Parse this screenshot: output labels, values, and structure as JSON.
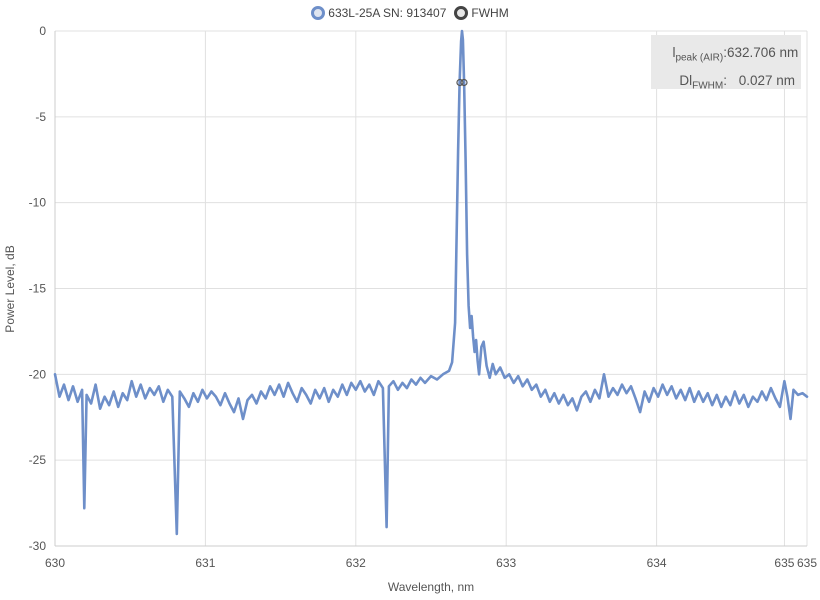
{
  "legend": {
    "series_label": "633L-25A SN: 913407",
    "fwhm_label": "FWHM"
  },
  "info": {
    "peak_label_main": "l",
    "peak_label_sub": "peak (AIR)",
    "peak_value": "632.706 nm",
    "fwhm_label_main": "Dl",
    "fwhm_label_sub": "FWHM",
    "fwhm_value": "0.027 nm"
  },
  "colors": {
    "series": "#6e8fc9",
    "fwhm_marker": "#555555",
    "grid": "#e0e0e0",
    "info_bg": "#e9e9e9"
  },
  "chart_data": {
    "type": "line",
    "title": "",
    "xlabel": "Wavelength, nm",
    "ylabel": "Power Level, dB",
    "xlim": [
      630,
      635
    ],
    "ylim": [
      -30,
      0
    ],
    "grid": true,
    "legend_position": "top-center",
    "x_ticks": [
      630,
      631,
      632,
      633,
      634,
      635
    ],
    "x_tick_labels": [
      "630",
      "631",
      "632",
      "633",
      "634",
      "635"
    ],
    "x_tick_extra": {
      "value": 634.85,
      "label": "635"
    },
    "y_ticks": [
      0,
      -5,
      -10,
      -15,
      -20,
      -25,
      -30
    ],
    "y_tick_labels": [
      "0",
      "-5",
      "-10",
      "-15",
      "-20",
      "-25",
      "-30"
    ],
    "series": [
      {
        "name": "633L-25A SN: 913407",
        "points": [
          [
            630.0,
            -20.0
          ],
          [
            630.03,
            -21.3
          ],
          [
            630.06,
            -20.6
          ],
          [
            630.09,
            -21.5
          ],
          [
            630.12,
            -20.7
          ],
          [
            630.15,
            -21.6
          ],
          [
            630.18,
            -20.9
          ],
          [
            630.195,
            -27.8
          ],
          [
            630.21,
            -21.2
          ],
          [
            630.24,
            -21.7
          ],
          [
            630.27,
            -20.6
          ],
          [
            630.3,
            -22.0
          ],
          [
            630.33,
            -21.3
          ],
          [
            630.36,
            -21.8
          ],
          [
            630.39,
            -21.0
          ],
          [
            630.42,
            -21.9
          ],
          [
            630.45,
            -21.1
          ],
          [
            630.48,
            -21.5
          ],
          [
            630.51,
            -20.4
          ],
          [
            630.54,
            -21.3
          ],
          [
            630.57,
            -20.6
          ],
          [
            630.6,
            -21.4
          ],
          [
            630.63,
            -20.8
          ],
          [
            630.66,
            -21.2
          ],
          [
            630.69,
            -20.7
          ],
          [
            630.72,
            -21.6
          ],
          [
            630.75,
            -20.9
          ],
          [
            630.78,
            -21.3
          ],
          [
            630.81,
            -29.3
          ],
          [
            630.83,
            -21.0
          ],
          [
            630.86,
            -21.4
          ],
          [
            630.89,
            -21.9
          ],
          [
            630.92,
            -21.1
          ],
          [
            630.95,
            -21.6
          ],
          [
            630.98,
            -20.9
          ],
          [
            631.01,
            -21.4
          ],
          [
            631.04,
            -21.0
          ],
          [
            631.07,
            -21.3
          ],
          [
            631.1,
            -21.8
          ],
          [
            631.13,
            -21.1
          ],
          [
            631.16,
            -21.7
          ],
          [
            631.19,
            -22.2
          ],
          [
            631.22,
            -21.4
          ],
          [
            631.25,
            -22.6
          ],
          [
            631.28,
            -21.5
          ],
          [
            631.31,
            -21.2
          ],
          [
            631.34,
            -21.7
          ],
          [
            631.37,
            -21.0
          ],
          [
            631.4,
            -21.4
          ],
          [
            631.43,
            -20.7
          ],
          [
            631.46,
            -21.2
          ],
          [
            631.49,
            -20.6
          ],
          [
            631.52,
            -21.3
          ],
          [
            631.55,
            -20.5
          ],
          [
            631.58,
            -21.1
          ],
          [
            631.61,
            -21.6
          ],
          [
            631.64,
            -20.8
          ],
          [
            631.67,
            -21.2
          ],
          [
            631.7,
            -21.7
          ],
          [
            631.73,
            -20.9
          ],
          [
            631.76,
            -21.4
          ],
          [
            631.79,
            -20.8
          ],
          [
            631.82,
            -21.6
          ],
          [
            631.85,
            -20.9
          ],
          [
            631.88,
            -21.3
          ],
          [
            631.91,
            -20.6
          ],
          [
            631.94,
            -21.2
          ],
          [
            631.97,
            -20.5
          ],
          [
            632.0,
            -20.9
          ],
          [
            632.03,
            -20.4
          ],
          [
            632.06,
            -21.0
          ],
          [
            632.09,
            -20.6
          ],
          [
            632.12,
            -21.2
          ],
          [
            632.15,
            -20.4
          ],
          [
            632.18,
            -20.8
          ],
          [
            632.205,
            -28.9
          ],
          [
            632.22,
            -20.7
          ],
          [
            632.25,
            -20.4
          ],
          [
            632.28,
            -20.9
          ],
          [
            632.31,
            -20.5
          ],
          [
            632.34,
            -20.8
          ],
          [
            632.37,
            -20.3
          ],
          [
            632.4,
            -20.6
          ],
          [
            632.43,
            -20.2
          ],
          [
            632.46,
            -20.5
          ],
          [
            632.5,
            -20.1
          ],
          [
            632.54,
            -20.3
          ],
          [
            632.58,
            -20.0
          ],
          [
            632.62,
            -19.8
          ],
          [
            632.64,
            -19.3
          ],
          [
            632.66,
            -17.0
          ],
          [
            632.67,
            -12.0
          ],
          [
            632.68,
            -7.0
          ],
          [
            632.69,
            -3.0
          ],
          [
            632.7,
            -0.6
          ],
          [
            632.706,
            0.0
          ],
          [
            632.712,
            -0.5
          ],
          [
            632.72,
            -3.0
          ],
          [
            632.73,
            -7.5
          ],
          [
            632.74,
            -13.0
          ],
          [
            632.75,
            -16.0
          ],
          [
            632.76,
            -17.3
          ],
          [
            632.77,
            -16.6
          ],
          [
            632.78,
            -17.8
          ],
          [
            632.79,
            -18.7
          ],
          [
            632.8,
            -18.0
          ],
          [
            632.81,
            -19.2
          ],
          [
            632.82,
            -20.0
          ],
          [
            632.835,
            -18.4
          ],
          [
            632.85,
            -18.1
          ],
          [
            632.87,
            -19.5
          ],
          [
            632.89,
            -20.2
          ],
          [
            632.91,
            -19.4
          ],
          [
            632.93,
            -20.0
          ],
          [
            632.96,
            -19.6
          ],
          [
            632.99,
            -20.2
          ],
          [
            633.02,
            -20.0
          ],
          [
            633.05,
            -20.5
          ],
          [
            633.08,
            -20.1
          ],
          [
            633.11,
            -20.7
          ],
          [
            633.14,
            -20.3
          ],
          [
            633.17,
            -20.9
          ],
          [
            633.2,
            -20.6
          ],
          [
            633.23,
            -21.3
          ],
          [
            633.26,
            -20.9
          ],
          [
            633.29,
            -21.6
          ],
          [
            633.32,
            -21.1
          ],
          [
            633.35,
            -21.7
          ],
          [
            633.38,
            -21.2
          ],
          [
            633.41,
            -21.8
          ],
          [
            633.44,
            -21.4
          ],
          [
            633.47,
            -22.1
          ],
          [
            633.5,
            -21.3
          ],
          [
            633.53,
            -21.0
          ],
          [
            633.56,
            -21.6
          ],
          [
            633.59,
            -20.9
          ],
          [
            633.62,
            -21.4
          ],
          [
            633.65,
            -20.0
          ],
          [
            633.68,
            -21.3
          ],
          [
            633.71,
            -20.8
          ],
          [
            633.74,
            -21.2
          ],
          [
            633.77,
            -20.6
          ],
          [
            633.8,
            -21.1
          ],
          [
            633.83,
            -20.7
          ],
          [
            633.86,
            -21.4
          ],
          [
            633.89,
            -22.2
          ],
          [
            633.92,
            -21.0
          ],
          [
            633.95,
            -21.6
          ],
          [
            633.98,
            -20.8
          ],
          [
            634.01,
            -21.3
          ],
          [
            634.04,
            -20.6
          ],
          [
            634.07,
            -21.2
          ],
          [
            634.1,
            -20.7
          ],
          [
            634.13,
            -21.4
          ],
          [
            634.16,
            -20.9
          ],
          [
            634.19,
            -21.5
          ],
          [
            634.22,
            -20.8
          ],
          [
            634.25,
            -21.6
          ],
          [
            634.28,
            -21.0
          ],
          [
            634.31,
            -21.6
          ],
          [
            634.34,
            -21.1
          ],
          [
            634.37,
            -21.8
          ],
          [
            634.4,
            -21.2
          ],
          [
            634.43,
            -21.9
          ],
          [
            634.46,
            -21.3
          ],
          [
            634.49,
            -21.8
          ],
          [
            634.52,
            -21.0
          ],
          [
            634.55,
            -21.7
          ],
          [
            634.58,
            -21.2
          ],
          [
            634.61,
            -21.9
          ],
          [
            634.64,
            -21.3
          ],
          [
            634.67,
            -21.6
          ],
          [
            634.7,
            -21.0
          ],
          [
            634.73,
            -21.5
          ],
          [
            634.76,
            -20.8
          ],
          [
            634.79,
            -21.4
          ],
          [
            634.82,
            -21.9
          ],
          [
            634.85,
            -20.4
          ],
          [
            634.87,
            -21.3
          ],
          [
            634.89,
            -22.6
          ],
          [
            634.91,
            -20.9
          ],
          [
            634.94,
            -21.2
          ],
          [
            634.97,
            -21.1
          ],
          [
            635.0,
            -21.3
          ]
        ]
      }
    ],
    "fwhm_markers": [
      [
        632.6925,
        -3.0
      ],
      [
        632.7195,
        -3.0
      ]
    ]
  }
}
